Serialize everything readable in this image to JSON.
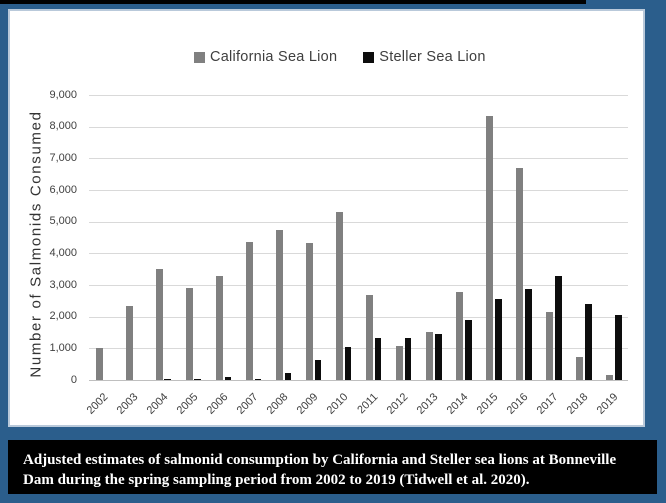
{
  "colors": {
    "frame_blue": "#2b5e8c",
    "panel_border": "#b9c9da",
    "california_gray": "#808080",
    "steller_black": "#0d0d0d",
    "gridline": "#d9d9d9",
    "axis_line": "#bfbfbf",
    "axis_text": "#404040",
    "caption_bg": "#000000",
    "caption_text": "#ffffff"
  },
  "legend": {
    "items": [
      {
        "label": "California Sea Lion",
        "color": "#808080"
      },
      {
        "label": "Steller Sea Lion",
        "color": "#0d0d0d"
      }
    ]
  },
  "chart_data": {
    "type": "bar",
    "title": "",
    "xlabel": "",
    "ylabel": "Number of Salmonids Consumed",
    "ylim": [
      0,
      9000
    ],
    "ytick_interval": 1000,
    "ytick_labels": [
      "0",
      "1,000",
      "2,000",
      "3,000",
      "4,000",
      "5,000",
      "6,000",
      "7,000",
      "8,000",
      "9,000"
    ],
    "grid": true,
    "legend_position": "top",
    "categories": [
      "2002",
      "2003",
      "2004",
      "2005",
      "2006",
      "2007",
      "2008",
      "2009",
      "2010",
      "2011",
      "2012",
      "2013",
      "2014",
      "2015",
      "2016",
      "2017",
      "2018",
      "2019"
    ],
    "series": [
      {
        "name": "California Sea Lion",
        "values": [
          1000,
          2330,
          3520,
          2910,
          3300,
          4350,
          4750,
          4340,
          5300,
          2700,
          1070,
          1520,
          2770,
          8340,
          6700,
          2140,
          730,
          170
        ]
      },
      {
        "name": "Steller Sea Lion",
        "values": [
          0,
          0,
          30,
          20,
          110,
          20,
          220,
          630,
          1030,
          1330,
          1330,
          1450,
          1900,
          2560,
          2880,
          3280,
          2390,
          2060
        ]
      }
    ]
  },
  "caption": {
    "lines": [
      "Adjusted estimates of salmonid consumption by California and Steller sea lions at Bonneville",
      "Dam during the spring sampling period from 2002 to 2019 (Tidwell et al. 2020)."
    ]
  }
}
